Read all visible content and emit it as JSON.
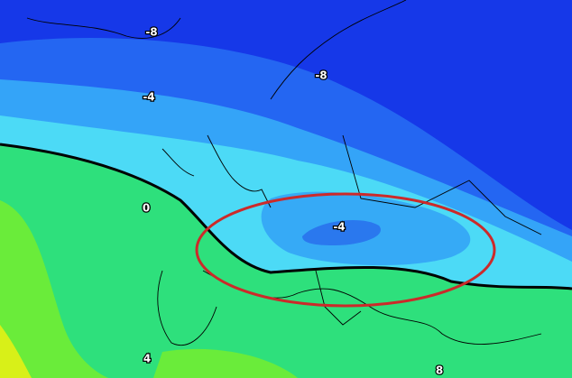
{
  "contour_labels": [
    "-8",
    "-8",
    "-4",
    "-4",
    "0",
    "4",
    "8"
  ]
}
